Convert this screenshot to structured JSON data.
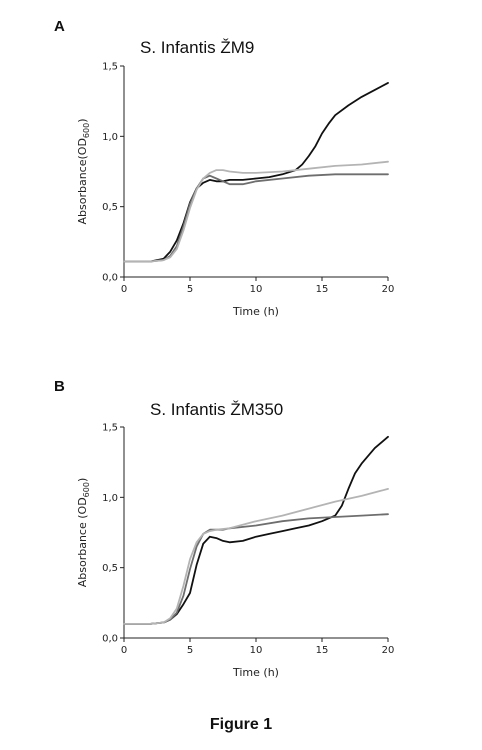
{
  "figure": {
    "caption": "Figure 1"
  },
  "chart_data": [
    {
      "panel": "A",
      "type": "line",
      "title": "S. Infantis ŽM9",
      "xlabel": "Time (h)",
      "ylabel": "Absorbance(OD600)",
      "ylabel_main": "Absorbance(OD",
      "ylabel_sub": "600",
      "ylabel_close": ")",
      "xlim": [
        0,
        20
      ],
      "ylim": [
        0,
        1.5
      ],
      "xticks": [
        "0",
        "5",
        "10",
        "15",
        "20"
      ],
      "yticks": [
        "0,0",
        "0,5",
        "1,0",
        "1,5"
      ],
      "series": [
        {
          "color": "#111111",
          "points": [
            [
              0,
              0.11
            ],
            [
              2,
              0.11
            ],
            [
              3,
              0.13
            ],
            [
              3.5,
              0.18
            ],
            [
              4,
              0.26
            ],
            [
              4.5,
              0.38
            ],
            [
              5,
              0.53
            ],
            [
              5.5,
              0.63
            ],
            [
              6,
              0.67
            ],
            [
              6.5,
              0.69
            ],
            [
              7,
              0.68
            ],
            [
              7.5,
              0.68
            ],
            [
              8,
              0.69
            ],
            [
              9,
              0.69
            ],
            [
              10,
              0.7
            ],
            [
              11,
              0.71
            ],
            [
              12,
              0.73
            ],
            [
              13,
              0.76
            ],
            [
              13.5,
              0.8
            ],
            [
              14,
              0.86
            ],
            [
              14.5,
              0.93
            ],
            [
              15,
              1.02
            ],
            [
              15.5,
              1.09
            ],
            [
              16,
              1.15
            ],
            [
              17,
              1.22
            ],
            [
              18,
              1.28
            ],
            [
              19,
              1.33
            ],
            [
              20,
              1.38
            ]
          ]
        },
        {
          "color": "#6e6e6e",
          "points": [
            [
              0,
              0.11
            ],
            [
              2,
              0.11
            ],
            [
              3,
              0.12
            ],
            [
              3.5,
              0.15
            ],
            [
              4,
              0.22
            ],
            [
              4.5,
              0.36
            ],
            [
              5,
              0.52
            ],
            [
              5.5,
              0.63
            ],
            [
              6,
              0.7
            ],
            [
              6.5,
              0.72
            ],
            [
              7,
              0.7
            ],
            [
              7.5,
              0.68
            ],
            [
              8,
              0.66
            ],
            [
              9,
              0.66
            ],
            [
              10,
              0.68
            ],
            [
              12,
              0.7
            ],
            [
              14,
              0.72
            ],
            [
              16,
              0.73
            ],
            [
              18,
              0.73
            ],
            [
              20,
              0.73
            ]
          ]
        },
        {
          "color": "#b4b4b4",
          "points": [
            [
              0,
              0.11
            ],
            [
              2,
              0.11
            ],
            [
              3,
              0.12
            ],
            [
              3.5,
              0.14
            ],
            [
              4,
              0.2
            ],
            [
              4.5,
              0.33
            ],
            [
              5,
              0.49
            ],
            [
              5.5,
              0.62
            ],
            [
              6,
              0.7
            ],
            [
              6.5,
              0.74
            ],
            [
              7,
              0.76
            ],
            [
              7.5,
              0.76
            ],
            [
              8,
              0.75
            ],
            [
              9,
              0.74
            ],
            [
              10,
              0.74
            ],
            [
              12,
              0.75
            ],
            [
              14,
              0.77
            ],
            [
              16,
              0.79
            ],
            [
              18,
              0.8
            ],
            [
              20,
              0.82
            ]
          ]
        }
      ]
    },
    {
      "panel": "B",
      "type": "line",
      "title": "S. Infantis ŽM350",
      "xlabel": "Time (h)",
      "ylabel": "Absorbance (OD600)",
      "ylabel_main": "Absorbance (OD",
      "ylabel_sub": "600",
      "ylabel_close": ")",
      "xlim": [
        0,
        20
      ],
      "ylim": [
        0,
        1.5
      ],
      "xticks": [
        "0",
        "5",
        "10",
        "15",
        "20"
      ],
      "yticks": [
        "0,0",
        "0,5",
        "1,0",
        "1,5"
      ],
      "series": [
        {
          "color": "#111111",
          "points": [
            [
              0,
              0.1
            ],
            [
              2,
              0.1
            ],
            [
              3,
              0.11
            ],
            [
              3.5,
              0.13
            ],
            [
              4,
              0.17
            ],
            [
              4.5,
              0.24
            ],
            [
              5,
              0.32
            ],
            [
              5.5,
              0.52
            ],
            [
              6,
              0.67
            ],
            [
              6.5,
              0.72
            ],
            [
              7,
              0.71
            ],
            [
              7.5,
              0.69
            ],
            [
              8,
              0.68
            ],
            [
              9,
              0.69
            ],
            [
              10,
              0.72
            ],
            [
              11,
              0.74
            ],
            [
              12,
              0.76
            ],
            [
              13,
              0.78
            ],
            [
              14,
              0.8
            ],
            [
              15,
              0.83
            ],
            [
              16,
              0.87
            ],
            [
              16.5,
              0.94
            ],
            [
              17,
              1.06
            ],
            [
              17.5,
              1.17
            ],
            [
              18,
              1.24
            ],
            [
              19,
              1.35
            ],
            [
              20,
              1.43
            ]
          ]
        },
        {
          "color": "#6e6e6e",
          "points": [
            [
              0,
              0.1
            ],
            [
              2,
              0.1
            ],
            [
              3,
              0.11
            ],
            [
              3.5,
              0.13
            ],
            [
              4,
              0.18
            ],
            [
              4.5,
              0.3
            ],
            [
              5,
              0.49
            ],
            [
              5.5,
              0.65
            ],
            [
              6,
              0.74
            ],
            [
              6.5,
              0.77
            ],
            [
              7,
              0.77
            ],
            [
              7.5,
              0.77
            ],
            [
              8,
              0.78
            ],
            [
              10,
              0.8
            ],
            [
              12,
              0.83
            ],
            [
              14,
              0.85
            ],
            [
              16,
              0.86
            ],
            [
              18,
              0.87
            ],
            [
              20,
              0.88
            ]
          ]
        },
        {
          "color": "#b4b4b4",
          "points": [
            [
              0,
              0.1
            ],
            [
              2,
              0.1
            ],
            [
              3,
              0.11
            ],
            [
              3.5,
              0.14
            ],
            [
              4,
              0.21
            ],
            [
              4.5,
              0.37
            ],
            [
              5,
              0.56
            ],
            [
              5.5,
              0.68
            ],
            [
              6,
              0.74
            ],
            [
              6.5,
              0.76
            ],
            [
              7,
              0.77
            ],
            [
              8,
              0.78
            ],
            [
              10,
              0.83
            ],
            [
              12,
              0.87
            ],
            [
              14,
              0.92
            ],
            [
              16,
              0.97
            ],
            [
              18,
              1.01
            ],
            [
              20,
              1.06
            ]
          ]
        }
      ]
    }
  ]
}
